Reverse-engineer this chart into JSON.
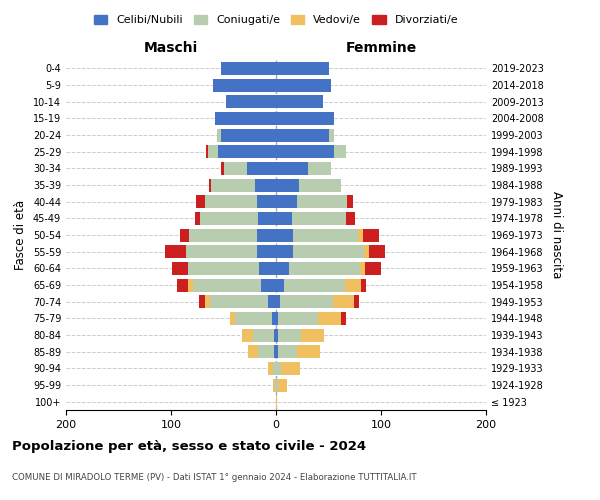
{
  "age_groups": [
    "100+",
    "95-99",
    "90-94",
    "85-89",
    "80-84",
    "75-79",
    "70-74",
    "65-69",
    "60-64",
    "55-59",
    "50-54",
    "45-49",
    "40-44",
    "35-39",
    "30-34",
    "25-29",
    "20-24",
    "15-19",
    "10-14",
    "5-9",
    "0-4"
  ],
  "birth_years": [
    "≤ 1923",
    "1924-1928",
    "1929-1933",
    "1934-1938",
    "1939-1943",
    "1944-1948",
    "1949-1953",
    "1954-1958",
    "1959-1963",
    "1964-1968",
    "1969-1973",
    "1974-1978",
    "1979-1983",
    "1984-1988",
    "1989-1993",
    "1994-1998",
    "1999-2003",
    "2004-2008",
    "2009-2013",
    "2014-2018",
    "2019-2023"
  ],
  "colors": {
    "celibi": "#4472C4",
    "coniugati": "#B8CCB0",
    "vedovi": "#F0C060",
    "divorziati": "#CC2020"
  },
  "males": {
    "celibi": [
      0,
      0,
      0,
      2,
      2,
      4,
      8,
      14,
      16,
      18,
      18,
      17,
      18,
      20,
      28,
      55,
      52,
      58,
      48,
      60,
      52
    ],
    "coniugati": [
      0,
      1,
      3,
      15,
      20,
      35,
      55,
      65,
      68,
      68,
      65,
      55,
      50,
      42,
      22,
      10,
      4,
      0,
      0,
      0,
      0
    ],
    "vedovi": [
      0,
      2,
      5,
      10,
      10,
      5,
      5,
      5,
      0,
      0,
      0,
      0,
      0,
      0,
      0,
      0,
      0,
      0,
      0,
      0,
      0
    ],
    "divorziati": [
      0,
      0,
      0,
      0,
      0,
      0,
      5,
      10,
      15,
      20,
      8,
      5,
      8,
      2,
      2,
      2,
      0,
      0,
      0,
      0,
      0
    ]
  },
  "females": {
    "nubili": [
      0,
      0,
      0,
      2,
      2,
      2,
      4,
      8,
      12,
      16,
      16,
      15,
      20,
      22,
      30,
      55,
      50,
      55,
      45,
      52,
      50
    ],
    "coniugate": [
      0,
      2,
      5,
      18,
      22,
      38,
      50,
      58,
      68,
      68,
      62,
      52,
      48,
      40,
      22,
      12,
      5,
      0,
      0,
      0,
      0
    ],
    "vedove": [
      1,
      8,
      18,
      22,
      22,
      22,
      20,
      15,
      5,
      5,
      5,
      0,
      0,
      0,
      0,
      0,
      0,
      0,
      0,
      0,
      0
    ],
    "divorziate": [
      0,
      0,
      0,
      0,
      0,
      5,
      5,
      5,
      15,
      15,
      15,
      8,
      5,
      0,
      0,
      0,
      0,
      0,
      0,
      0,
      0
    ]
  },
  "title_main": "Popolazione per età, sesso e stato civile - 2024",
  "title_sub": "COMUNE DI MIRADOLO TERME (PV) - Dati ISTAT 1° gennaio 2024 - Elaborazione TUTTITALIA.IT",
  "xlabel_left": "Maschi",
  "xlabel_right": "Femmine",
  "ylabel_left": "Fasce di età",
  "ylabel_right": "Anni di nascita",
  "legend_labels": [
    "Celibi/Nubili",
    "Coniugati/e",
    "Vedovi/e",
    "Divorziati/e"
  ],
  "xlim": 200,
  "background_color": "#ffffff",
  "grid_color": "#cccccc"
}
